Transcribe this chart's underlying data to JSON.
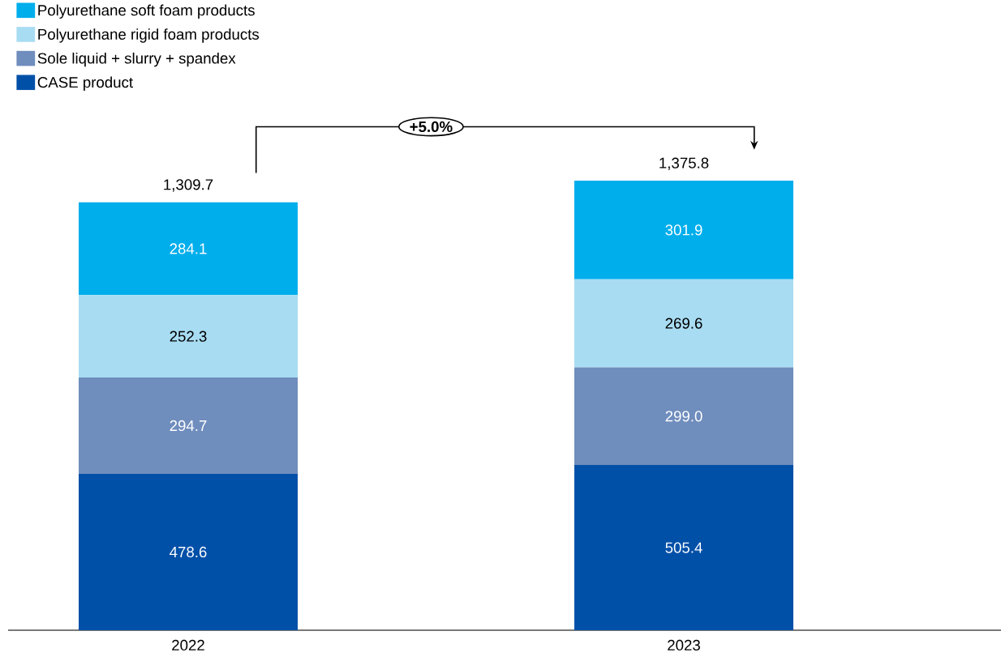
{
  "chart_data": {
    "type": "bar",
    "stacked": true,
    "categories": [
      "2022",
      "2023"
    ],
    "series": [
      {
        "name": "CASE product",
        "color": "#0050a8",
        "values": [
          478.6,
          505.4
        ],
        "value_labels": [
          "478.6",
          "505.4"
        ]
      },
      {
        "name": "Sole liquid + slurry + spandex",
        "color": "#6f8dbd",
        "values": [
          294.7,
          299.0
        ],
        "value_labels": [
          "294.7",
          "299.0"
        ]
      },
      {
        "name": "Polyurethane rigid foam products",
        "color": "#a8dcf2",
        "values": [
          252.3,
          269.6
        ],
        "value_labels": [
          "252.3",
          "269.6"
        ]
      },
      {
        "name": "Polyurethane soft foam products",
        "color": "#00aeec",
        "values": [
          284.1,
          301.9
        ],
        "value_labels": [
          "284.1",
          "301.9"
        ]
      }
    ],
    "totals": [
      "1,309.7",
      "1,375.8"
    ],
    "annotations": [
      "+5.0%"
    ],
    "legend": "top left"
  }
}
